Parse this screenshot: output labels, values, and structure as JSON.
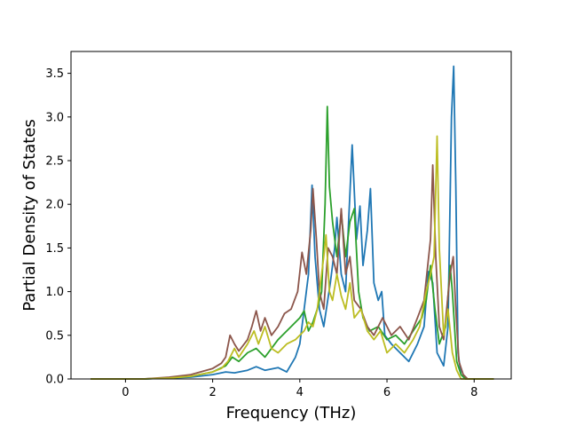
{
  "chart_data": {
    "type": "line",
    "title": "",
    "xlabel": "Frequency (THz)",
    "ylabel": "Partial Density of States",
    "xlim": [
      -1.25,
      8.85
    ],
    "ylim": [
      0.0,
      3.75
    ],
    "x_ticks": [
      0,
      2,
      4,
      6,
      8
    ],
    "y_ticks": [
      0.0,
      0.5,
      1.0,
      1.5,
      2.0,
      2.5,
      3.0,
      3.5
    ],
    "x_tick_labels": [
      "0",
      "2",
      "4",
      "6",
      "8"
    ],
    "y_tick_labels": [
      "0.0",
      "0.5",
      "1.0",
      "1.5",
      "2.0",
      "2.5",
      "3.0",
      "3.5"
    ],
    "grid": false,
    "legend": "none",
    "series": [
      {
        "color": "#1f77b4",
        "points": [
          [
            -0.8,
            0
          ],
          [
            0.4,
            0
          ],
          [
            1.0,
            0.01
          ],
          [
            1.5,
            0.02
          ],
          [
            2.0,
            0.05
          ],
          [
            2.3,
            0.08
          ],
          [
            2.5,
            0.07
          ],
          [
            2.8,
            0.1
          ],
          [
            3.0,
            0.14
          ],
          [
            3.2,
            0.1
          ],
          [
            3.5,
            0.13
          ],
          [
            3.7,
            0.08
          ],
          [
            3.9,
            0.25
          ],
          [
            4.0,
            0.4
          ],
          [
            4.1,
            0.8
          ],
          [
            4.2,
            1.2
          ],
          [
            4.28,
            2.22
          ],
          [
            4.35,
            1.4
          ],
          [
            4.45,
            0.8
          ],
          [
            4.55,
            0.6
          ],
          [
            4.7,
            1.1
          ],
          [
            4.8,
            1.5
          ],
          [
            4.85,
            1.85
          ],
          [
            4.95,
            1.2
          ],
          [
            5.05,
            1.0
          ],
          [
            5.12,
            1.8
          ],
          [
            5.2,
            2.68
          ],
          [
            5.3,
            1.6
          ],
          [
            5.38,
            1.98
          ],
          [
            5.45,
            1.3
          ],
          [
            5.55,
            1.7
          ],
          [
            5.62,
            2.18
          ],
          [
            5.7,
            1.1
          ],
          [
            5.8,
            0.9
          ],
          [
            5.88,
            1.0
          ],
          [
            5.95,
            0.5
          ],
          [
            6.1,
            0.4
          ],
          [
            6.3,
            0.3
          ],
          [
            6.5,
            0.2
          ],
          [
            6.7,
            0.4
          ],
          [
            6.85,
            0.6
          ],
          [
            6.95,
            1.23
          ],
          [
            7.05,
            1.1
          ],
          [
            7.15,
            0.3
          ],
          [
            7.3,
            0.15
          ],
          [
            7.4,
            0.6
          ],
          [
            7.48,
            3.0
          ],
          [
            7.53,
            3.58
          ],
          [
            7.58,
            2.2
          ],
          [
            7.63,
            0.3
          ],
          [
            7.7,
            0.05
          ],
          [
            7.8,
            0
          ],
          [
            8.45,
            0
          ]
        ]
      },
      {
        "color": "#2ca02c",
        "points": [
          [
            -0.8,
            0
          ],
          [
            0.4,
            0
          ],
          [
            1.0,
            0.01
          ],
          [
            1.5,
            0.03
          ],
          [
            2.0,
            0.08
          ],
          [
            2.3,
            0.15
          ],
          [
            2.45,
            0.25
          ],
          [
            2.6,
            0.2
          ],
          [
            2.8,
            0.3
          ],
          [
            3.0,
            0.35
          ],
          [
            3.2,
            0.25
          ],
          [
            3.5,
            0.45
          ],
          [
            3.8,
            0.6
          ],
          [
            4.0,
            0.7
          ],
          [
            4.1,
            0.78
          ],
          [
            4.2,
            0.55
          ],
          [
            4.3,
            0.65
          ],
          [
            4.4,
            0.8
          ],
          [
            4.5,
            1.0
          ],
          [
            4.58,
            2.0
          ],
          [
            4.63,
            3.12
          ],
          [
            4.68,
            2.2
          ],
          [
            4.75,
            1.8
          ],
          [
            4.85,
            1.4
          ],
          [
            4.95,
            1.9
          ],
          [
            5.05,
            1.4
          ],
          [
            5.15,
            1.8
          ],
          [
            5.25,
            1.95
          ],
          [
            5.35,
            1.0
          ],
          [
            5.45,
            0.7
          ],
          [
            5.6,
            0.55
          ],
          [
            5.8,
            0.6
          ],
          [
            6.0,
            0.45
          ],
          [
            6.2,
            0.5
          ],
          [
            6.4,
            0.4
          ],
          [
            6.6,
            0.55
          ],
          [
            6.8,
            0.7
          ],
          [
            6.9,
            0.9
          ],
          [
            7.0,
            1.3
          ],
          [
            7.1,
            0.8
          ],
          [
            7.2,
            0.4
          ],
          [
            7.35,
            0.6
          ],
          [
            7.45,
            1.3
          ],
          [
            7.5,
            1.0
          ],
          [
            7.6,
            0.2
          ],
          [
            7.7,
            0.05
          ],
          [
            7.8,
            0
          ],
          [
            8.45,
            0
          ]
        ]
      },
      {
        "color": "#8c564b",
        "points": [
          [
            -0.8,
            0
          ],
          [
            0.4,
            0
          ],
          [
            1.0,
            0.02
          ],
          [
            1.5,
            0.05
          ],
          [
            2.0,
            0.12
          ],
          [
            2.2,
            0.18
          ],
          [
            2.3,
            0.25
          ],
          [
            2.4,
            0.5
          ],
          [
            2.5,
            0.4
          ],
          [
            2.6,
            0.32
          ],
          [
            2.8,
            0.45
          ],
          [
            2.9,
            0.6
          ],
          [
            3.0,
            0.78
          ],
          [
            3.1,
            0.55
          ],
          [
            3.2,
            0.7
          ],
          [
            3.35,
            0.5
          ],
          [
            3.5,
            0.6
          ],
          [
            3.65,
            0.75
          ],
          [
            3.8,
            0.8
          ],
          [
            3.95,
            1.0
          ],
          [
            4.05,
            1.45
          ],
          [
            4.15,
            1.2
          ],
          [
            4.25,
            1.7
          ],
          [
            4.3,
            2.18
          ],
          [
            4.38,
            1.6
          ],
          [
            4.45,
            1.0
          ],
          [
            4.55,
            0.8
          ],
          [
            4.65,
            1.5
          ],
          [
            4.75,
            1.4
          ],
          [
            4.85,
            1.2
          ],
          [
            4.95,
            1.95
          ],
          [
            5.05,
            1.2
          ],
          [
            5.15,
            1.4
          ],
          [
            5.25,
            0.9
          ],
          [
            5.4,
            0.8
          ],
          [
            5.55,
            0.6
          ],
          [
            5.7,
            0.5
          ],
          [
            5.9,
            0.7
          ],
          [
            6.1,
            0.5
          ],
          [
            6.3,
            0.6
          ],
          [
            6.5,
            0.45
          ],
          [
            6.7,
            0.7
          ],
          [
            6.85,
            0.9
          ],
          [
            7.0,
            1.6
          ],
          [
            7.05,
            2.45
          ],
          [
            7.12,
            1.4
          ],
          [
            7.2,
            0.6
          ],
          [
            7.3,
            0.45
          ],
          [
            7.45,
            1.2
          ],
          [
            7.52,
            1.4
          ],
          [
            7.58,
            0.8
          ],
          [
            7.65,
            0.2
          ],
          [
            7.75,
            0.05
          ],
          [
            7.85,
            0
          ],
          [
            8.45,
            0
          ]
        ]
      },
      {
        "color": "#bcbd22",
        "points": [
          [
            -0.8,
            0
          ],
          [
            0.4,
            0
          ],
          [
            1.0,
            0.01
          ],
          [
            1.5,
            0.03
          ],
          [
            2.0,
            0.08
          ],
          [
            2.2,
            0.12
          ],
          [
            2.35,
            0.2
          ],
          [
            2.5,
            0.35
          ],
          [
            2.6,
            0.25
          ],
          [
            2.8,
            0.4
          ],
          [
            2.95,
            0.55
          ],
          [
            3.05,
            0.4
          ],
          [
            3.2,
            0.6
          ],
          [
            3.35,
            0.35
          ],
          [
            3.5,
            0.3
          ],
          [
            3.7,
            0.4
          ],
          [
            3.9,
            0.45
          ],
          [
            4.0,
            0.5
          ],
          [
            4.1,
            0.55
          ],
          [
            4.2,
            0.65
          ],
          [
            4.3,
            0.6
          ],
          [
            4.4,
            0.8
          ],
          [
            4.55,
            1.4
          ],
          [
            4.6,
            1.65
          ],
          [
            4.68,
            1.0
          ],
          [
            4.75,
            0.9
          ],
          [
            4.85,
            1.2
          ],
          [
            4.95,
            0.95
          ],
          [
            5.05,
            0.8
          ],
          [
            5.15,
            1.1
          ],
          [
            5.25,
            0.7
          ],
          [
            5.4,
            0.8
          ],
          [
            5.55,
            0.55
          ],
          [
            5.7,
            0.45
          ],
          [
            5.85,
            0.55
          ],
          [
            6.0,
            0.3
          ],
          [
            6.2,
            0.4
          ],
          [
            6.4,
            0.3
          ],
          [
            6.6,
            0.45
          ],
          [
            6.75,
            0.6
          ],
          [
            6.9,
            1.0
          ],
          [
            7.0,
            1.2
          ],
          [
            7.08,
            1.4
          ],
          [
            7.15,
            2.78
          ],
          [
            7.2,
            1.5
          ],
          [
            7.3,
            0.5
          ],
          [
            7.4,
            0.8
          ],
          [
            7.5,
            0.3
          ],
          [
            7.6,
            0.1
          ],
          [
            7.7,
            0
          ],
          [
            8.45,
            0
          ]
        ]
      }
    ]
  }
}
